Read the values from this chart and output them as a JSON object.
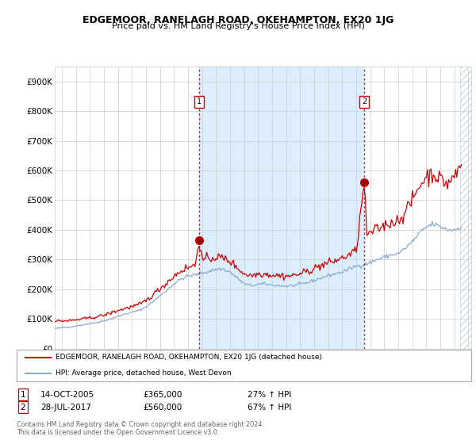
{
  "title": "EDGEMOOR, RANELAGH ROAD, OKEHAMPTON, EX20 1JG",
  "subtitle": "Price paid vs. HM Land Registry's House Price Index (HPI)",
  "ylim": [
    0,
    950000
  ],
  "yticks": [
    0,
    100000,
    200000,
    300000,
    400000,
    500000,
    600000,
    700000,
    800000,
    900000
  ],
  "ytick_labels": [
    "£0",
    "£100K",
    "£200K",
    "£300K",
    "£400K",
    "£500K",
    "£600K",
    "£700K",
    "£800K",
    "£900K"
  ],
  "xlim_start": 1995.5,
  "xlim_end": 2025.2,
  "bg_color": "#ffffff",
  "fill_color": "#ddeeff",
  "red_color": "#cc0000",
  "blue_color": "#88aacc",
  "legend_label_red": "EDGEMOOR, RANELAGH ROAD, OKEHAMPTON, EX20 1JG (detached house)",
  "legend_label_blue": "HPI: Average price, detached house, West Devon",
  "sale1_date": "14-OCT-2005",
  "sale1_price": 365000,
  "sale1_pct": "27%",
  "sale1_x": 2005.79,
  "sale2_date": "28-JUL-2017",
  "sale2_price": 560000,
  "sale2_pct": "67%",
  "sale2_x": 2017.57,
  "footnote": "Contains HM Land Registry data © Crown copyright and database right 2024.\nThis data is licensed under the Open Government Licence v3.0."
}
